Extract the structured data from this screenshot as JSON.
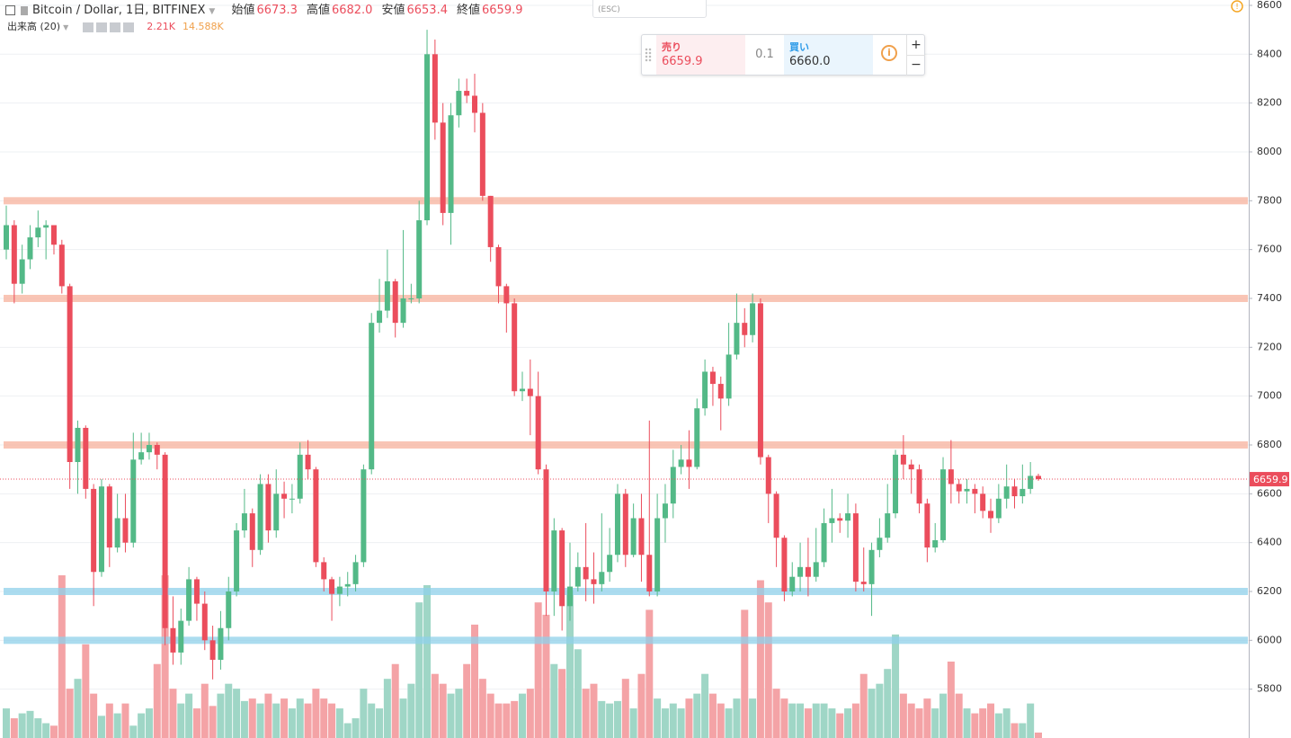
{
  "chart_data": {
    "type": "candlestick",
    "title": "Bitcoin / Dollar, 1日, BITFINEX",
    "legend": {
      "labels": [
        "始値",
        "高値",
        "安値",
        "終値"
      ],
      "value_labels": [
        "6673.3",
        "6682.0",
        "6653.4",
        "6659.9"
      ]
    },
    "volume_legend": {
      "name": "出来高 (20)",
      "value_label": "2.21K",
      "ma_label": "14.588K"
    },
    "trade_panel": {
      "esc": "(ESC)",
      "sell_label": "売り",
      "sell_price": "6659.9",
      "quantity": "0.1",
      "buy_label": "買い",
      "buy_price": "6660.0"
    },
    "up_color": "#53b987",
    "down_color": "#eb4d5c",
    "up_volume_color": "#9fd6c6",
    "down_volume_color": "#f4a3a6",
    "ylim": [
      5600,
      8622
    ],
    "yticks": [
      5800,
      6000,
      6200,
      6400,
      6600,
      6800,
      7000,
      7200,
      7400,
      7600,
      7800,
      8000,
      8200,
      8400,
      8600
    ],
    "grid": true,
    "hlines": [
      {
        "value": 7800,
        "color": "#f7b29c"
      },
      {
        "value": 7400,
        "color": "#f7b29c"
      },
      {
        "value": 6800,
        "color": "#f7b29c"
      },
      {
        "value": 6200,
        "color": "#8fd0ea"
      },
      {
        "value": 6000,
        "color": "#8fd0ea"
      }
    ],
    "open": [
      7600,
      7700,
      7460,
      7560,
      7650,
      7690,
      7700,
      7620,
      7450,
      6730,
      6870,
      6620,
      6280,
      6630,
      6380,
      6500,
      6400,
      6740,
      6770,
      6800,
      6760,
      6050,
      5950,
      6080,
      6250,
      6150,
      6000,
      5920,
      6050,
      6200,
      6450,
      6520,
      6370,
      6640,
      6450,
      6600,
      6580,
      6580,
      6760,
      6700,
      6320,
      6250,
      6190,
      6220,
      6230,
      6320,
      6700,
      7300,
      7350,
      7470,
      7300,
      7400,
      7400,
      7720,
      8400,
      8120,
      7750,
      8150,
      8250,
      8230,
      8160,
      7820,
      7610,
      7450,
      7380,
      7020,
      7030,
      7000,
      6700,
      6200,
      6450,
      6140,
      6220,
      6300,
      6250,
      6230,
      6280,
      6350,
      6600,
      6350,
      6500,
      6350,
      6200,
      6500,
      6560,
      6710,
      6740,
      6710,
      6950,
      7100,
      7050,
      6990,
      7170,
      7300,
      7250,
      7380,
      6750,
      6600,
      6420,
      6200,
      6260,
      6300,
      6260,
      6320,
      6480,
      6500,
      6490,
      6520,
      6240,
      6230,
      6370,
      6420,
      6520,
      6760,
      6720,
      6700,
      6560,
      6380,
      6410,
      6700,
      6640,
      6610,
      6620,
      6600,
      6530,
      6500,
      6580,
      6630,
      6590,
      6620,
      6673.3
    ],
    "high": [
      7780,
      7720,
      7620,
      7700,
      7760,
      7720,
      7700,
      7640,
      7460,
      6900,
      6880,
      6640,
      6660,
      6640,
      6600,
      6600,
      6850,
      6850,
      6850,
      6810,
      6770,
      6180,
      6130,
      6300,
      6260,
      6200,
      6060,
      6120,
      6260,
      6480,
      6620,
      6540,
      6680,
      6680,
      6700,
      6650,
      6640,
      6810,
      6820,
      6710,
      6340,
      6260,
      6260,
      6280,
      6350,
      6720,
      7340,
      7480,
      7600,
      7480,
      7680,
      7460,
      7800,
      8500,
      8460,
      8200,
      8200,
      8300,
      8300,
      8320,
      8200,
      7820,
      7620,
      7460,
      7400,
      7100,
      7150,
      7100,
      6720,
      6500,
      6460,
      6400,
      6360,
      6480,
      6360,
      6520,
      6460,
      6640,
      6620,
      6560,
      6600,
      6900,
      6600,
      6640,
      6780,
      6800,
      6860,
      6990,
      7150,
      7120,
      7080,
      7300,
      7420,
      7360,
      7420,
      7400,
      6760,
      6610,
      6430,
      6320,
      6400,
      6420,
      6460,
      6540,
      6620,
      6520,
      6600,
      6560,
      6380,
      6400,
      6500,
      6640,
      6780,
      6840,
      6740,
      6720,
      6580,
      6480,
      6750,
      6820,
      6660,
      6660,
      6640,
      6630,
      6580,
      6640,
      6720,
      6660,
      6720,
      6730,
      6682
    ],
    "low": [
      7560,
      7380,
      7420,
      7520,
      7610,
      7560,
      7580,
      7420,
      6620,
      6600,
      6580,
      6140,
      6260,
      6300,
      6360,
      6360,
      6380,
      6720,
      6740,
      6700,
      5980,
      5900,
      5900,
      6060,
      6080,
      5960,
      5840,
      5880,
      6000,
      6180,
      6420,
      6300,
      6350,
      6400,
      6420,
      6500,
      6520,
      6560,
      6660,
      6300,
      6200,
      6080,
      6140,
      6180,
      6200,
      6300,
      6680,
      7260,
      7320,
      7240,
      7280,
      7380,
      7380,
      7700,
      8050,
      7700,
      7620,
      8100,
      8200,
      8080,
      7800,
      7550,
      7380,
      7260,
      7000,
      6980,
      6840,
      6680,
      6100,
      6100,
      6040,
      6080,
      6200,
      6160,
      6150,
      6200,
      6240,
      6320,
      6300,
      6340,
      6240,
      6180,
      6180,
      6400,
      6500,
      6680,
      6620,
      6700,
      6920,
      6960,
      6860,
      6960,
      7150,
      7200,
      7220,
      6720,
      6480,
      6300,
      6160,
      6180,
      6200,
      6180,
      6240,
      6300,
      6400,
      6440,
      6420,
      6200,
      6200,
      6100,
      6340,
      6400,
      6500,
      6660,
      6600,
      6520,
      6320,
      6360,
      6400,
      6560,
      6560,
      6560,
      6520,
      6500,
      6440,
      6480,
      6540,
      6540,
      6560,
      6600,
      6653.4
    ],
    "close": [
      7700,
      7460,
      7560,
      7650,
      7690,
      7700,
      7620,
      7450,
      6730,
      6870,
      6620,
      6280,
      6630,
      6380,
      6500,
      6400,
      6740,
      6770,
      6800,
      6760,
      6050,
      5950,
      6080,
      6250,
      6150,
      6000,
      5920,
      6050,
      6200,
      6450,
      6520,
      6370,
      6640,
      6450,
      6600,
      6580,
      6580,
      6760,
      6700,
      6320,
      6250,
      6190,
      6220,
      6230,
      6320,
      6700,
      7300,
      7350,
      7470,
      7300,
      7400,
      7400,
      7720,
      8400,
      8120,
      7750,
      8150,
      8250,
      8230,
      8160,
      7820,
      7610,
      7450,
      7380,
      7020,
      7030,
      7000,
      6700,
      6200,
      6450,
      6140,
      6220,
      6300,
      6250,
      6230,
      6280,
      6350,
      6600,
      6350,
      6500,
      6350,
      6200,
      6500,
      6560,
      6710,
      6740,
      6710,
      6950,
      7100,
      7050,
      6990,
      7170,
      7300,
      7250,
      7380,
      6750,
      6600,
      6420,
      6200,
      6260,
      6300,
      6260,
      6320,
      6480,
      6500,
      6490,
      6520,
      6240,
      6230,
      6370,
      6420,
      6520,
      6760,
      6720,
      6700,
      6560,
      6380,
      6410,
      6700,
      6640,
      6610,
      6620,
      6600,
      6530,
      6500,
      6580,
      6630,
      6590,
      6620,
      6673.3,
      6659.9
    ],
    "volume": [
      12,
      8,
      10,
      11,
      8,
      6,
      5,
      66,
      20,
      24,
      38,
      18,
      9,
      14,
      10,
      14,
      5,
      10,
      12,
      30,
      66,
      20,
      14,
      18,
      12,
      22,
      13,
      18,
      22,
      20,
      15,
      16,
      14,
      18,
      14,
      16,
      12,
      16,
      14,
      20,
      16,
      14,
      12,
      6,
      8,
      20,
      14,
      12,
      24,
      30,
      16,
      22,
      55,
      62,
      26,
      22,
      18,
      20,
      30,
      46,
      24,
      18,
      14,
      14,
      15,
      18,
      20,
      55,
      50,
      30,
      28,
      60,
      36,
      20,
      22,
      15,
      14,
      15,
      24,
      12,
      26,
      52,
      16,
      12,
      14,
      12,
      16,
      18,
      26,
      18,
      14,
      12,
      16,
      52,
      16,
      64,
      55,
      20,
      16,
      14,
      14,
      12,
      14,
      14,
      12,
      10,
      12,
      14,
      26,
      20,
      22,
      28,
      42,
      18,
      14,
      12,
      16,
      12,
      18,
      31,
      18,
      12,
      10,
      12,
      14,
      10,
      12,
      6,
      6,
      14,
      2.21
    ]
  }
}
